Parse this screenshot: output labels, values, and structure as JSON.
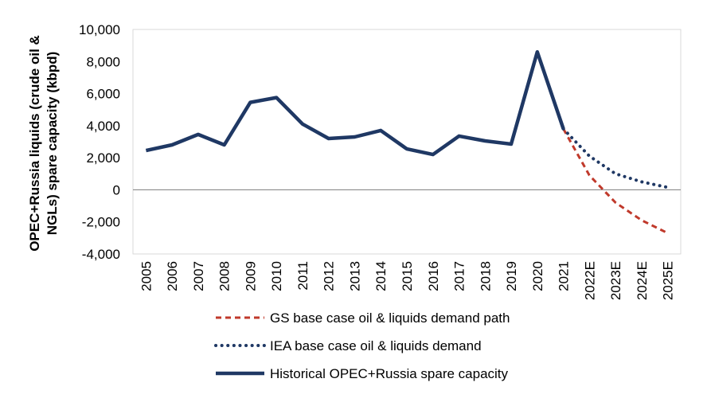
{
  "chart_data": {
    "type": "line",
    "categories": [
      "2005",
      "2006",
      "2007",
      "2008",
      "2009",
      "2010",
      "2011",
      "2012",
      "2013",
      "2014",
      "2015",
      "2016",
      "2017",
      "2018",
      "2019",
      "2020",
      "2021",
      "2022E",
      "2023E",
      "2024E",
      "2025E"
    ],
    "ylabel": "OPEC+Russia liquids (crude oil & NGLs) spare capacity (kbpd)",
    "ylim": [
      -4000,
      10000
    ],
    "yticks": [
      -4000,
      -2000,
      0,
      2000,
      4000,
      6000,
      8000,
      10000
    ],
    "ytick_labels": [
      "-4,000",
      "-2,000",
      "0",
      "2,000",
      "4,000",
      "6,000",
      "8,000",
      "10,000"
    ],
    "series": [
      {
        "name": "GS base case oil & liquids demand path",
        "style": "dashed",
        "color": "#c0392b",
        "x": [
          "2021",
          "2022E",
          "2023E",
          "2024E",
          "2025E"
        ],
        "values": [
          3800,
          900,
          -800,
          -1900,
          -2700
        ]
      },
      {
        "name": "IEA base case oil & liquids demand",
        "style": "dotted",
        "color": "#1f3864",
        "x": [
          "2021",
          "2022E",
          "2023E",
          "2024E",
          "2025E"
        ],
        "values": [
          3800,
          2100,
          1000,
          500,
          150
        ]
      },
      {
        "name": "Historical OPEC+Russia spare capacity",
        "style": "solid",
        "color": "#1f3864",
        "x": [
          "2005",
          "2006",
          "2007",
          "2008",
          "2009",
          "2010",
          "2011",
          "2012",
          "2013",
          "2014",
          "2015",
          "2016",
          "2017",
          "2018",
          "2019",
          "2020",
          "2021"
        ],
        "values": [
          2450,
          2800,
          3450,
          2800,
          5450,
          5750,
          4100,
          3200,
          3300,
          3700,
          2550,
          2200,
          3350,
          3050,
          2850,
          8600,
          3800
        ]
      }
    ],
    "legend": {
      "position": "bottom"
    }
  }
}
